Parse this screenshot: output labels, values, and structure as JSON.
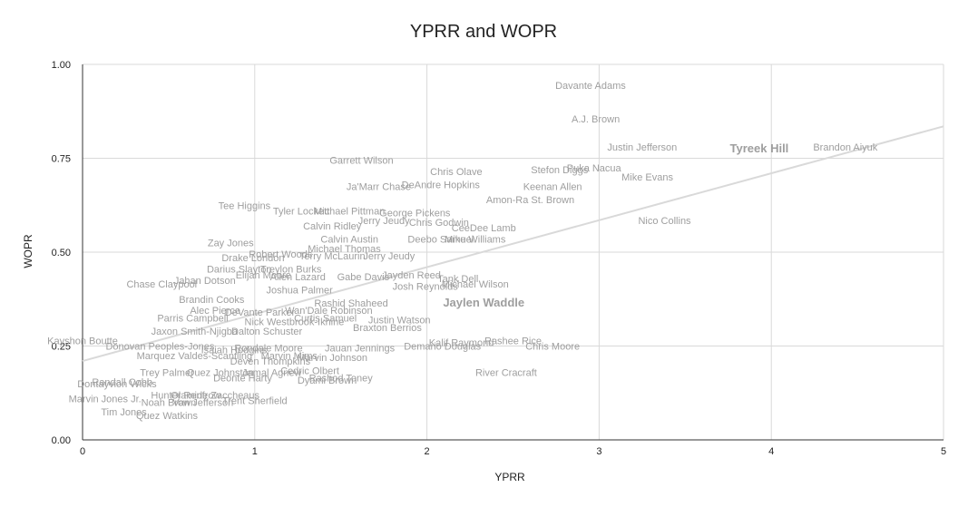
{
  "chart_data": {
    "type": "scatter",
    "title": "YPRR and WOPR",
    "xlabel": "YPRR",
    "ylabel": "WOPR",
    "xlim": [
      0,
      5
    ],
    "ylim": [
      0,
      1
    ],
    "x_ticks": [
      "0",
      "1",
      "2",
      "3",
      "4",
      "5"
    ],
    "y_ticks": [
      "0.00",
      "0.25",
      "0.50",
      "0.75",
      "1.00"
    ],
    "grid": true,
    "trendline": {
      "x": [
        0,
        5
      ],
      "y": [
        0.21,
        0.835
      ]
    },
    "label_color": "#9e9e9e",
    "highlight_color": "#4bbdd0",
    "points": [
      {
        "label": "Davante Adams",
        "x": 2.95,
        "y": 0.945
      },
      {
        "label": "A.J. Brown",
        "x": 2.98,
        "y": 0.855
      },
      {
        "label": "Justin Jefferson",
        "x": 3.25,
        "y": 0.78
      },
      {
        "label": "Tyreek Hill",
        "x": 3.93,
        "y": 0.775,
        "highlight": true
      },
      {
        "label": "Brandon Aiyuk",
        "x": 4.43,
        "y": 0.78
      },
      {
        "label": "Garrett Wilson",
        "x": 1.62,
        "y": 0.745
      },
      {
        "label": "Chris Olave",
        "x": 2.17,
        "y": 0.715
      },
      {
        "label": "Stefon Diggs",
        "x": 2.77,
        "y": 0.72
      },
      {
        "label": "Puka Nacua",
        "x": 2.97,
        "y": 0.725
      },
      {
        "label": "Mike Evans",
        "x": 3.28,
        "y": 0.7
      },
      {
        "label": "Ja'Marr Chase",
        "x": 1.72,
        "y": 0.675
      },
      {
        "label": "DeAndre Hopkins",
        "x": 2.08,
        "y": 0.68
      },
      {
        "label": "Keenan Allen",
        "x": 2.73,
        "y": 0.675
      },
      {
        "label": "Amon-Ra St. Brown",
        "x": 2.6,
        "y": 0.64
      },
      {
        "label": "Tee Higgins",
        "x": 0.94,
        "y": 0.625
      },
      {
        "label": "Tyler Lockett",
        "x": 1.27,
        "y": 0.61
      },
      {
        "label": "Michael Pittman",
        "x": 1.55,
        "y": 0.61
      },
      {
        "label": "George Pickens",
        "x": 1.93,
        "y": 0.605
      },
      {
        "label": "Jerry Jeudy",
        "x": 1.75,
        "y": 0.585
      },
      {
        "label": "Chris Godwin",
        "x": 2.07,
        "y": 0.58
      },
      {
        "label": "CeeDee Lamb",
        "x": 2.33,
        "y": 0.565
      },
      {
        "label": "Nico Collins",
        "x": 3.38,
        "y": 0.585
      },
      {
        "label": "Calvin Ridley",
        "x": 1.45,
        "y": 0.57
      },
      {
        "label": "Zay Jones",
        "x": 0.86,
        "y": 0.525
      },
      {
        "label": "Calvin Austin",
        "x": 1.55,
        "y": 0.535
      },
      {
        "label": "Deebo Samuel",
        "x": 2.08,
        "y": 0.535
      },
      {
        "label": "Mike Williams",
        "x": 2.28,
        "y": 0.535
      },
      {
        "label": "Michael Thomas",
        "x": 1.52,
        "y": 0.51
      },
      {
        "label": "Robert Woods",
        "x": 1.15,
        "y": 0.495
      },
      {
        "label": "Terry McLaurin",
        "x": 1.45,
        "y": 0.49
      },
      {
        "label": "Jerry Jeudy",
        "x": 1.78,
        "y": 0.49
      },
      {
        "label": "Drake London",
        "x": 0.99,
        "y": 0.485
      },
      {
        "label": "Darius Slayton",
        "x": 0.91,
        "y": 0.455
      },
      {
        "label": "Treylon Burks",
        "x": 1.21,
        "y": 0.455
      },
      {
        "label": "Elijah Moore",
        "x": 1.05,
        "y": 0.44
      },
      {
        "label": "Allen Lazard",
        "x": 1.25,
        "y": 0.435
      },
      {
        "label": "Gabe Davis",
        "x": 1.63,
        "y": 0.435
      },
      {
        "label": "Jayden Reed",
        "x": 1.91,
        "y": 0.44
      },
      {
        "label": "Tank Dell",
        "x": 2.18,
        "y": 0.43
      },
      {
        "label": "Michael Wilson",
        "x": 2.28,
        "y": 0.415
      },
      {
        "label": "Jahan Dotson",
        "x": 0.71,
        "y": 0.425
      },
      {
        "label": "Chase Claypool",
        "x": 0.46,
        "y": 0.415
      },
      {
        "label": "Josh Reynolds",
        "x": 1.99,
        "y": 0.41
      },
      {
        "label": "Joshua Palmer",
        "x": 1.26,
        "y": 0.4
      },
      {
        "label": "Brandin Cooks",
        "x": 0.75,
        "y": 0.375
      },
      {
        "label": "Jaylen Waddle",
        "x": 2.33,
        "y": 0.365,
        "highlight": true
      },
      {
        "label": "Rashid Shaheed",
        "x": 1.56,
        "y": 0.365
      },
      {
        "label": "Alec Pierce",
        "x": 0.77,
        "y": 0.345
      },
      {
        "label": "DeVante Parker",
        "x": 1.03,
        "y": 0.34
      },
      {
        "label": "Wan'Dale Robinson",
        "x": 1.43,
        "y": 0.345
      },
      {
        "label": "Parris Campbell",
        "x": 0.64,
        "y": 0.325
      },
      {
        "label": "Curtis Samuel",
        "x": 1.41,
        "y": 0.325
      },
      {
        "label": "Nick Westbrook-Ikhine",
        "x": 1.23,
        "y": 0.315
      },
      {
        "label": "Justin Watson",
        "x": 1.84,
        "y": 0.32
      },
      {
        "label": "Braxton Berrios",
        "x": 1.77,
        "y": 0.3
      },
      {
        "label": "Jaxon Smith-Njigba",
        "x": 0.65,
        "y": 0.29
      },
      {
        "label": "Dalton Schuster",
        "x": 1.07,
        "y": 0.29
      },
      {
        "label": "Kayshon Boutte",
        "x": 0.0,
        "y": 0.265
      },
      {
        "label": "Rashee Rice",
        "x": 2.5,
        "y": 0.265
      },
      {
        "label": "Kalif Raymond",
        "x": 2.2,
        "y": 0.26
      },
      {
        "label": "Chris Moore",
        "x": 2.73,
        "y": 0.25
      },
      {
        "label": "Demario Douglas",
        "x": 2.09,
        "y": 0.25
      },
      {
        "label": "Jauan Jennings",
        "x": 1.61,
        "y": 0.245
      },
      {
        "label": "Donovan Peoples-Jones",
        "x": 0.45,
        "y": 0.25
      },
      {
        "label": "Rondale Moore",
        "x": 1.08,
        "y": 0.245
      },
      {
        "label": "Isaiah Hodgins",
        "x": 0.88,
        "y": 0.24
      },
      {
        "label": "Marquez Valdes-Scantling",
        "x": 0.65,
        "y": 0.225
      },
      {
        "label": "Marvin Mims",
        "x": 1.2,
        "y": 0.225
      },
      {
        "label": "Marvin Johnson",
        "x": 1.45,
        "y": 0.22
      },
      {
        "label": "Deven Thompkins",
        "x": 1.09,
        "y": 0.21
      },
      {
        "label": "River Cracraft",
        "x": 2.46,
        "y": 0.18
      },
      {
        "label": "Trey Palmer",
        "x": 0.49,
        "y": 0.18
      },
      {
        "label": "Quez Johnston",
        "x": 0.8,
        "y": 0.18
      },
      {
        "label": "Jamal Agnew",
        "x": 1.1,
        "y": 0.18
      },
      {
        "label": "Cedric Olbert",
        "x": 1.32,
        "y": 0.185
      },
      {
        "label": "Deonte Harty",
        "x": 0.93,
        "y": 0.165
      },
      {
        "label": "Dyami Brown",
        "x": 1.42,
        "y": 0.16
      },
      {
        "label": "Rashod Toney",
        "x": 1.5,
        "y": 0.165
      },
      {
        "label": "Randall Cobb",
        "x": 0.23,
        "y": 0.155
      },
      {
        "label": "Dontayvion Wicks",
        "x": 0.2,
        "y": 0.15
      },
      {
        "label": "Hunter Renfrow",
        "x": 0.6,
        "y": 0.12
      },
      {
        "label": "Olamide Zaccheaus",
        "x": 0.77,
        "y": 0.12
      },
      {
        "label": "Trent Sherfield",
        "x": 1.0,
        "y": 0.105
      },
      {
        "label": "Marvin Jones Jr.",
        "x": 0.13,
        "y": 0.11
      },
      {
        "label": "Noah Brown",
        "x": 0.5,
        "y": 0.1
      },
      {
        "label": "Van Jefferson",
        "x": 0.7,
        "y": 0.1
      },
      {
        "label": "Tim Jones",
        "x": 0.24,
        "y": 0.075
      },
      {
        "label": "Quez Watkins",
        "x": 0.49,
        "y": 0.065
      }
    ]
  }
}
